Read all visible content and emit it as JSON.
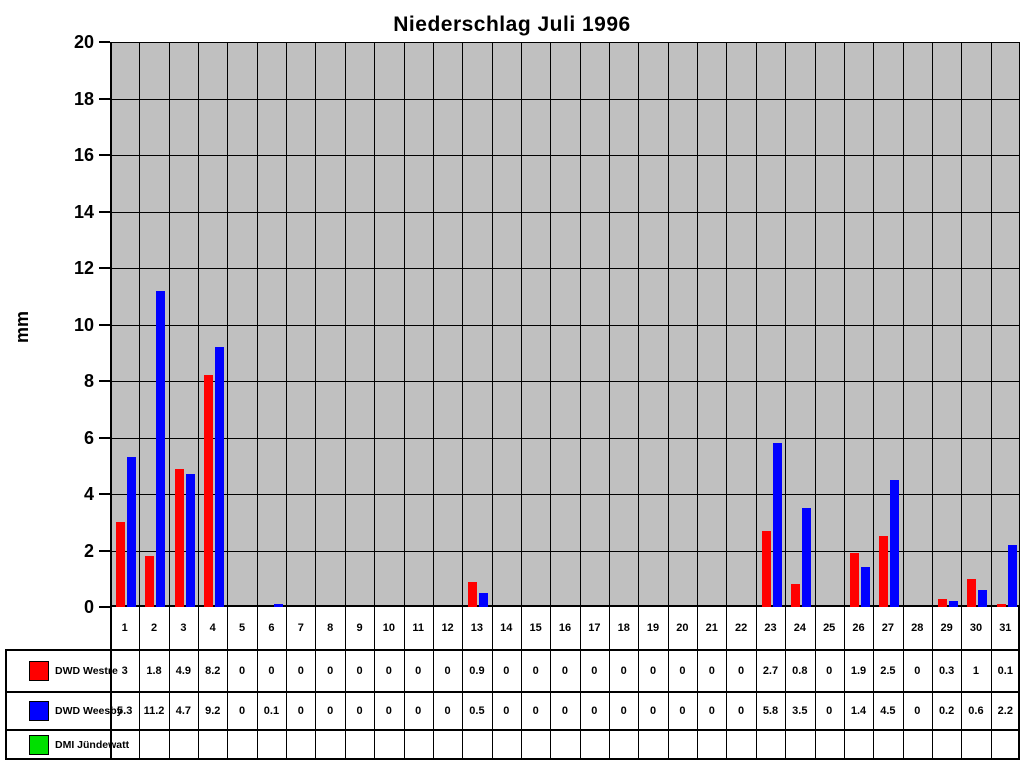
{
  "chart": {
    "title": "Niederschlag Juli 1996",
    "y_axis_label": "mm"
  },
  "chart_data": {
    "type": "bar",
    "title": "Niederschlag Juli 1996",
    "xlabel": "",
    "ylabel": "mm",
    "ylim": [
      0,
      20
    ],
    "y_ticks": [
      20,
      18,
      16,
      14,
      12,
      10,
      8,
      6,
      4,
      2,
      0
    ],
    "grid": true,
    "plot_background": "#C0C0C0",
    "gridline_color": "#000000",
    "legend_position": "data-table-left",
    "categories": [
      1,
      2,
      3,
      4,
      5,
      6,
      7,
      8,
      9,
      10,
      11,
      12,
      13,
      14,
      15,
      16,
      17,
      18,
      19,
      20,
      21,
      22,
      23,
      24,
      25,
      26,
      27,
      28,
      29,
      30,
      31
    ],
    "series": [
      {
        "name": "DWD Westre",
        "color": "#FF0000",
        "values": [
          3,
          1.8,
          4.9,
          8.2,
          0,
          0,
          0,
          0,
          0,
          0,
          0,
          0,
          0.9,
          0,
          0,
          0,
          0,
          0,
          0,
          0,
          0,
          0,
          2.7,
          0.8,
          0,
          1.9,
          2.5,
          0,
          0.3,
          1,
          0.1
        ]
      },
      {
        "name": "DWD Weesby",
        "color": "#0000FF",
        "values": [
          5.3,
          11.2,
          4.7,
          9.2,
          0,
          0.1,
          0,
          0,
          0,
          0,
          0,
          0,
          0.5,
          0,
          0,
          0,
          0,
          0,
          0,
          0,
          0,
          0,
          5.8,
          3.5,
          0,
          1.4,
          4.5,
          0,
          0.2,
          0.6,
          2.2
        ]
      },
      {
        "name": "DMI Jündewatt",
        "color": "#00E000",
        "values": [
          null,
          null,
          null,
          null,
          null,
          null,
          null,
          null,
          null,
          null,
          null,
          null,
          null,
          null,
          null,
          null,
          null,
          null,
          null,
          null,
          null,
          null,
          null,
          null,
          null,
          null,
          null,
          null,
          null,
          null,
          null
        ]
      }
    ]
  }
}
